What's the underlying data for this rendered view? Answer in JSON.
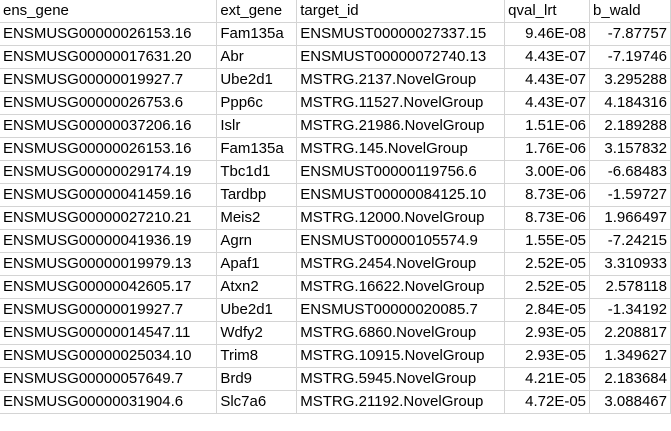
{
  "sheet": {
    "headers": [
      "ens_gene",
      "ext_gene",
      "target_id",
      "qval_lrt",
      "b_wald"
    ],
    "rows": [
      [
        "ENSMUSG00000026153.16",
        "Fam135a",
        "ENSMUST00000027337.15",
        "9.46E-08",
        "-7.87757"
      ],
      [
        "ENSMUSG00000017631.20",
        "Abr",
        "ENSMUST00000072740.13",
        "4.43E-07",
        "-7.19746"
      ],
      [
        "ENSMUSG00000019927.7",
        "Ube2d1",
        "MSTRG.2137.NovelGroup",
        "4.43E-07",
        "3.295288"
      ],
      [
        "ENSMUSG00000026753.6",
        "Ppp6c",
        "MSTRG.11527.NovelGroup",
        "4.43E-07",
        "4.184316"
      ],
      [
        "ENSMUSG00000037206.16",
        "Islr",
        "MSTRG.21986.NovelGroup",
        "1.51E-06",
        "2.189288"
      ],
      [
        "ENSMUSG00000026153.16",
        "Fam135a",
        "MSTRG.145.NovelGroup",
        "1.76E-06",
        "3.157832"
      ],
      [
        "ENSMUSG00000029174.19",
        "Tbc1d1",
        "ENSMUST00000119756.6",
        "3.00E-06",
        "-6.68483"
      ],
      [
        "ENSMUSG00000041459.16",
        "Tardbp",
        "ENSMUST00000084125.10",
        "8.73E-06",
        "-1.59727"
      ],
      [
        "ENSMUSG00000027210.21",
        "Meis2",
        "MSTRG.12000.NovelGroup",
        "8.73E-06",
        "1.966497"
      ],
      [
        "ENSMUSG00000041936.19",
        "Agrn",
        "ENSMUST00000105574.9",
        "1.55E-05",
        "-7.24215"
      ],
      [
        "ENSMUSG00000019979.13",
        "Apaf1",
        "MSTRG.2454.NovelGroup",
        "2.52E-05",
        "3.310933"
      ],
      [
        "ENSMUSG00000042605.17",
        "Atxn2",
        "MSTRG.16622.NovelGroup",
        "2.52E-05",
        "2.578118"
      ],
      [
        "ENSMUSG00000019927.7",
        "Ube2d1",
        "ENSMUST00000020085.7",
        "2.84E-05",
        "-1.34192"
      ],
      [
        "ENSMUSG00000014547.11",
        "Wdfy2",
        "MSTRG.6860.NovelGroup",
        "2.93E-05",
        "2.208817"
      ],
      [
        "ENSMUSG00000025034.10",
        "Trim8",
        "MSTRG.10915.NovelGroup",
        "2.93E-05",
        "1.349627"
      ],
      [
        "ENSMUSG00000057649.7",
        "Brd9",
        "MSTRG.5945.NovelGroup",
        "4.21E-05",
        "2.183684"
      ],
      [
        "ENSMUSG00000031904.6",
        "Slc7a6",
        "MSTRG.21192.NovelGroup",
        "4.72E-05",
        "3.088467"
      ]
    ]
  }
}
